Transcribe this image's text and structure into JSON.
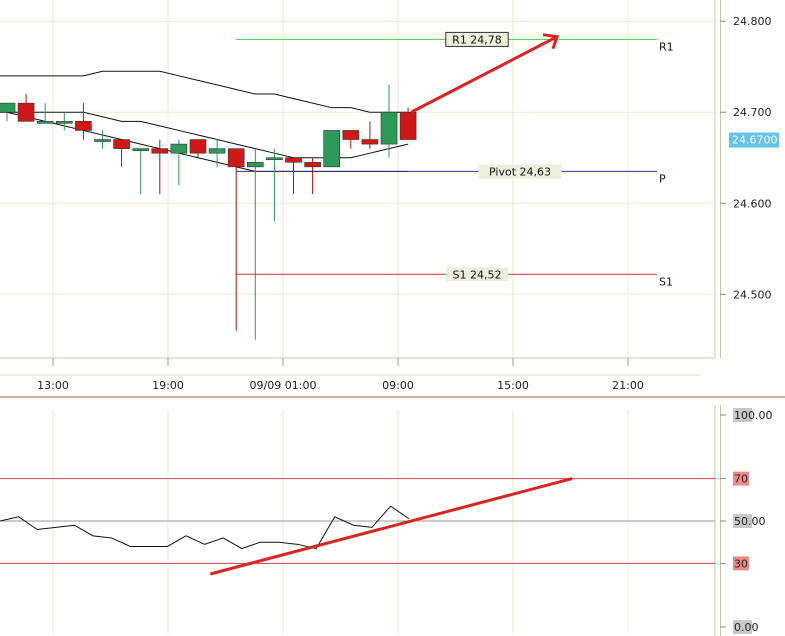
{
  "chart_data": [
    {
      "type": "candlestick",
      "ylim": [
        24.43,
        24.82
      ],
      "x_ticks": [
        "13:00",
        "19:00",
        "09/09 01:00",
        "09:00",
        "15:00",
        "21:00"
      ],
      "y_ticks": [
        "24.800",
        "24.700",
        "24.600",
        "24.500"
      ],
      "current_price": "24.6700",
      "candles": [
        {
          "o": 24.7,
          "h": 24.71,
          "l": 24.69,
          "c": 24.71
        },
        {
          "o": 24.71,
          "h": 24.72,
          "l": 24.69,
          "c": 24.69
        },
        {
          "o": 24.69,
          "h": 24.71,
          "l": 24.69,
          "c": 24.69
        },
        {
          "o": 24.69,
          "h": 24.7,
          "l": 24.68,
          "c": 24.69
        },
        {
          "o": 24.69,
          "h": 24.71,
          "l": 24.67,
          "c": 24.68
        },
        {
          "o": 24.67,
          "h": 24.68,
          "l": 24.66,
          "c": 24.67
        },
        {
          "o": 24.67,
          "h": 24.67,
          "l": 24.64,
          "c": 24.66
        },
        {
          "o": 24.66,
          "h": 24.66,
          "l": 24.61,
          "c": 24.66
        },
        {
          "o": 24.66,
          "h": 24.67,
          "l": 24.61,
          "c": 24.655
        },
        {
          "o": 24.655,
          "h": 24.67,
          "l": 24.62,
          "c": 24.665
        },
        {
          "o": 24.67,
          "h": 24.67,
          "l": 24.65,
          "c": 24.655
        },
        {
          "o": 24.655,
          "h": 24.67,
          "l": 24.64,
          "c": 24.66
        },
        {
          "o": 24.66,
          "h": 24.66,
          "l": 24.46,
          "c": 24.64
        },
        {
          "o": 24.64,
          "h": 24.66,
          "l": 24.45,
          "c": 24.645
        },
        {
          "o": 24.65,
          "h": 24.66,
          "l": 24.58,
          "c": 24.65
        },
        {
          "o": 24.65,
          "h": 24.65,
          "l": 24.61,
          "c": 24.645
        },
        {
          "o": 24.645,
          "h": 24.65,
          "l": 24.61,
          "c": 24.64
        },
        {
          "o": 24.64,
          "h": 24.68,
          "l": 24.64,
          "c": 24.68
        },
        {
          "o": 24.68,
          "h": 24.68,
          "l": 24.66,
          "c": 24.67
        },
        {
          "o": 24.67,
          "h": 24.69,
          "l": 24.66,
          "c": 24.665
        },
        {
          "o": 24.665,
          "h": 24.73,
          "l": 24.65,
          "c": 24.7
        },
        {
          "o": 24.7,
          "h": 24.705,
          "l": 24.67,
          "c": 24.67
        }
      ],
      "bands": {
        "upper": [
          24.74,
          24.74,
          24.74,
          24.74,
          24.74,
          24.745,
          24.745,
          24.745,
          24.745,
          24.74,
          24.735,
          24.73,
          24.725,
          24.72,
          24.72,
          24.715,
          24.71,
          24.705,
          24.705,
          24.7,
          24.7,
          24.7
        ],
        "middle": [
          24.7,
          24.7,
          24.7,
          24.7,
          24.7,
          24.695,
          24.69,
          24.69,
          24.685,
          24.68,
          24.675,
          24.67,
          24.665,
          24.66,
          24.655,
          24.65,
          24.65,
          24.65,
          24.65,
          24.655,
          24.66,
          24.665
        ],
        "lower": [
          24.7,
          24.695,
          24.69,
          24.685,
          24.68,
          24.675,
          24.67,
          24.665,
          24.66,
          24.655,
          24.65,
          24.645,
          24.64,
          24.635,
          24.635,
          24.635,
          24.635,
          24.635,
          24.635,
          24.635,
          24.635,
          24.635
        ]
      },
      "levels": [
        {
          "tag": "R1",
          "label": "R1 24,78",
          "value": 24.78,
          "color": "#44cc44"
        },
        {
          "tag": "P",
          "label": "Pivot 24,63",
          "value": 24.635,
          "color": "#333377"
        },
        {
          "tag": "S1",
          "label": "S1 24,52",
          "value": 24.522,
          "color": "#cc3333"
        }
      ],
      "arrow": {
        "color": "#dd2222",
        "from_value": 24.7,
        "to_value": 24.783
      }
    },
    {
      "type": "line",
      "name": "oscillator",
      "ylim": [
        0,
        100
      ],
      "y_ticks": [
        "100.00",
        "70",
        "50.00",
        "30",
        "0.00"
      ],
      "levels": [
        70,
        50,
        30
      ],
      "values": [
        50,
        52,
        46,
        47,
        48,
        43,
        42,
        38,
        38,
        38,
        43,
        39,
        42,
        37,
        40,
        40,
        39,
        37,
        52,
        48,
        47,
        57,
        51
      ],
      "trendline": {
        "color": "#dd2222",
        "from": [
          10.5,
          25
        ],
        "to": [
          28.5,
          70
        ]
      }
    }
  ]
}
